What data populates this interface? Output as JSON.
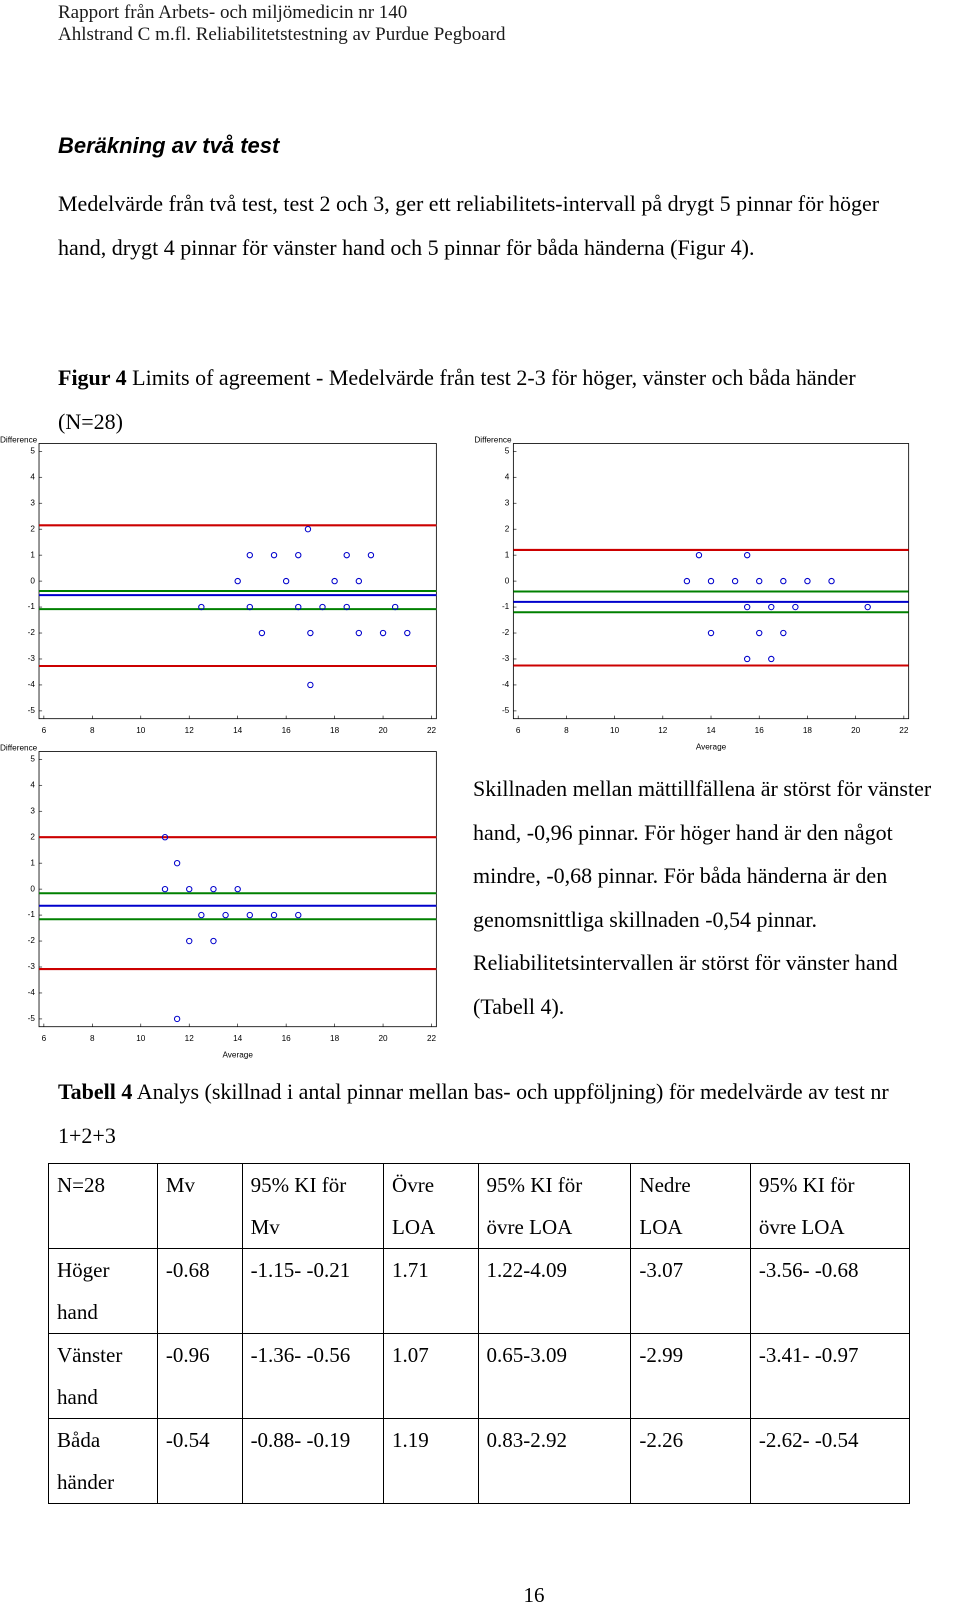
{
  "header": {
    "line1": "Rapport från Arbets- och miljömedicin nr 140",
    "line2": "Ahlstrand C m.fl. Reliabilitetstestning av Purdue Pegboard"
  },
  "section_title": "Beräkning av två test",
  "paragraph": "Medelvärde från två test, test 2 och 3, ger ett reliabilitets-intervall på drygt 5 pinnar för höger hand, drygt 4 pinnar för vänster hand och 5 pinnar för båda händerna (Figur 4).",
  "figure_caption": {
    "label": "Figur 4",
    "text": "Limits of agreement - Medelvärde från test 2-3 för höger, vänster och båda händer (N=28)"
  },
  "chart_data": [
    {
      "type": "scatter",
      "y_label": "Difference",
      "xlim": [
        5.8,
        22.2
      ],
      "ylim": [
        -5.3,
        5.3
      ],
      "xticks": [
        6,
        8,
        10,
        12,
        14,
        16,
        18,
        20,
        22
      ],
      "yticks": [
        -5,
        -4,
        -3,
        -2,
        -1,
        0,
        1,
        2,
        3,
        4,
        5
      ],
      "color": "#0000cc",
      "x": [
        16.9,
        14.5,
        15.5,
        16.5,
        18.5,
        19.5,
        14,
        16,
        18,
        19,
        12.5,
        14.5,
        16.5,
        17.5,
        18.5,
        20.5,
        15,
        17,
        19,
        20,
        21,
        17
      ],
      "y": [
        2,
        1,
        1,
        1,
        1,
        1,
        0,
        0,
        0,
        0,
        -1,
        -1,
        -1,
        -1,
        -1,
        -1,
        -2,
        -2,
        -2,
        -2,
        -2,
        -4
      ],
      "reference_lines": [
        {
          "value": 2.15,
          "color": "#cc0000"
        },
        {
          "value": -0.38,
          "color": "#008000"
        },
        {
          "value": -0.54,
          "color": "#0000cc"
        },
        {
          "value": -1.08,
          "color": "#008000"
        },
        {
          "value": -3.27,
          "color": "#cc0000"
        }
      ]
    },
    {
      "type": "scatter",
      "y_label": "Difference",
      "x_label": "Average",
      "xlim": [
        5.8,
        22.2
      ],
      "ylim": [
        -5.3,
        5.3
      ],
      "xticks": [
        6,
        8,
        10,
        12,
        14,
        16,
        18,
        20,
        22
      ],
      "yticks": [
        -5,
        -4,
        -3,
        -2,
        -1,
        0,
        1,
        2,
        3,
        4,
        5
      ],
      "color": "#0000cc",
      "x": [
        13.5,
        15.5,
        13,
        14,
        15,
        16,
        17,
        18,
        19,
        15.5,
        16.5,
        17.5,
        20.5,
        14,
        16,
        17,
        15.5,
        16.5
      ],
      "y": [
        1,
        1,
        0,
        0,
        0,
        0,
        0,
        0,
        0,
        -1,
        -1,
        -1,
        -1,
        -2,
        -2,
        -2,
        -3,
        -3
      ],
      "reference_lines": [
        {
          "value": 1.2,
          "color": "#cc0000"
        },
        {
          "value": -0.4,
          "color": "#008000"
        },
        {
          "value": -0.8,
          "color": "#0000cc"
        },
        {
          "value": -1.2,
          "color": "#008000"
        },
        {
          "value": -3.25,
          "color": "#cc0000"
        }
      ]
    },
    {
      "type": "scatter",
      "y_label": "Difference",
      "x_label": "Average",
      "xlim": [
        5.8,
        22.2
      ],
      "ylim": [
        -5.3,
        5.3
      ],
      "xticks": [
        6,
        8,
        10,
        12,
        14,
        16,
        18,
        20,
        22
      ],
      "yticks": [
        -5,
        -4,
        -3,
        -2,
        -1,
        0,
        1,
        2,
        3,
        4,
        5
      ],
      "color": "#0000cc",
      "x": [
        11,
        11.5,
        11,
        12,
        13,
        14,
        12.5,
        13.5,
        14.5,
        15.5,
        16.5,
        12,
        13,
        11.5
      ],
      "y": [
        2,
        1,
        0,
        0,
        0,
        0,
        -1,
        -1,
        -1,
        -1,
        -1,
        -2,
        -2,
        -5
      ],
      "reference_lines": [
        {
          "value": 2.0,
          "color": "#cc0000"
        },
        {
          "value": -0.16,
          "color": "#008000"
        },
        {
          "value": -0.64,
          "color": "#0000cc"
        },
        {
          "value": -1.16,
          "color": "#008000"
        },
        {
          "value": -3.08,
          "color": "#cc0000"
        }
      ]
    }
  ],
  "side_text": "Skillnaden mellan mättillfällena är störst för vänster hand, -0,96 pinnar. För höger hand är den något mindre, -0,68 pinnar. För båda händerna är den genomsnittliga skillnaden -0,54 pinnar. Reliabilitetsintervallen är störst för vänster hand (Tabell 4).",
  "table_caption": {
    "label": "Tabell 4",
    "text": "Analys (skillnad i antal pinnar mellan bas- och uppföljning) för medelvärde av test nr 1+2+3"
  },
  "table": {
    "header": [
      "N=28",
      "Mv",
      "95% KI för Mv",
      "Övre LOA",
      "95% KI för övre LOA",
      "Nedre LOA",
      "95% KI för övre LOA"
    ],
    "rows": [
      [
        "Höger hand",
        "-0.68",
        "-1.15- -0.21",
        "1.71",
        "1.22-4.09",
        "-3.07",
        "-3.56- -0.68"
      ],
      [
        "Vänster hand",
        "-0.96",
        "-1.36- -0.56",
        "1.07",
        "0.65-3.09",
        "-2.99",
        "-3.41- -0.97"
      ],
      [
        "Båda händer",
        "-0.54",
        "-0.88- -0.19",
        "1.19",
        "0.83-2.92",
        "-2.26",
        "-2.62- -0.54"
      ]
    ]
  },
  "page_number": "16"
}
